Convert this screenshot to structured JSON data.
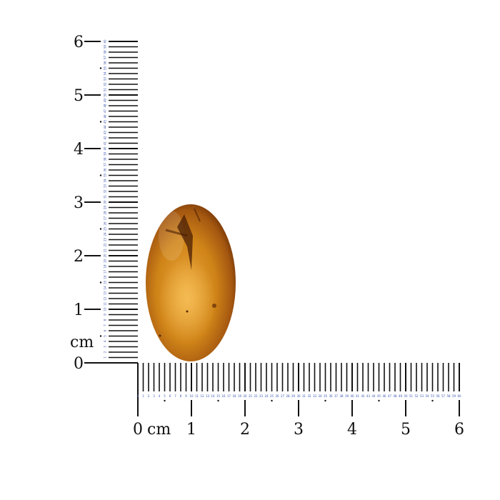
{
  "ruler": {
    "unit_label": "cm",
    "major_labels": [
      "0",
      "1",
      "2",
      "3",
      "4",
      "5",
      "6"
    ],
    "minor_count": 60,
    "minor_number_color": "#3a55b0",
    "tick_color": "#111111"
  },
  "specimen": {
    "subject": "amber cabochon with insect inclusion",
    "colors": {
      "core": "#d48a1c",
      "edge": "#7a3a08",
      "highlight": "#f2b845"
    }
  }
}
